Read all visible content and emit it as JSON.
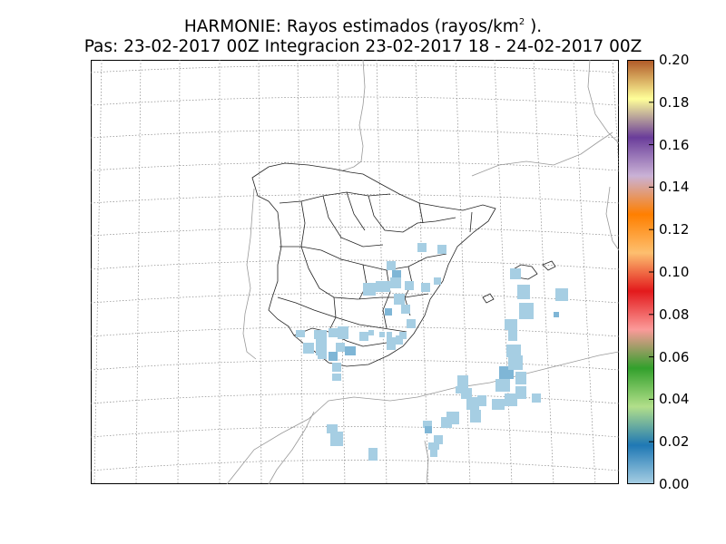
{
  "title": {
    "line1_prefix": "HARMONIE: Rayos estimados  (rayos/km",
    "line1_sup": "2",
    "line1_suffix": " ).",
    "line2": "Pas: 23-02-2017 00Z Integracion 23-02-2017 18 - 24-02-2017 00Z"
  },
  "colorbar": {
    "min": 0.0,
    "max": 0.2,
    "ticks": [
      "0.00",
      "0.02",
      "0.04",
      "0.06",
      "0.08",
      "0.10",
      "0.12",
      "0.14",
      "0.16",
      "0.18",
      "0.20"
    ],
    "stops": [
      "#a6cee3",
      "#1f78b4",
      "#b2df8a",
      "#33a02c",
      "#fb9a99",
      "#e31a1c",
      "#fdbf6f",
      "#ff7f00",
      "#cab2d6",
      "#6a3d9a",
      "#ffff99",
      "#b15928"
    ]
  },
  "map": {
    "gridline_color": "#888888",
    "cell_color": "#a6cee3",
    "cell_dark_color": "#7fb6d6"
  }
}
